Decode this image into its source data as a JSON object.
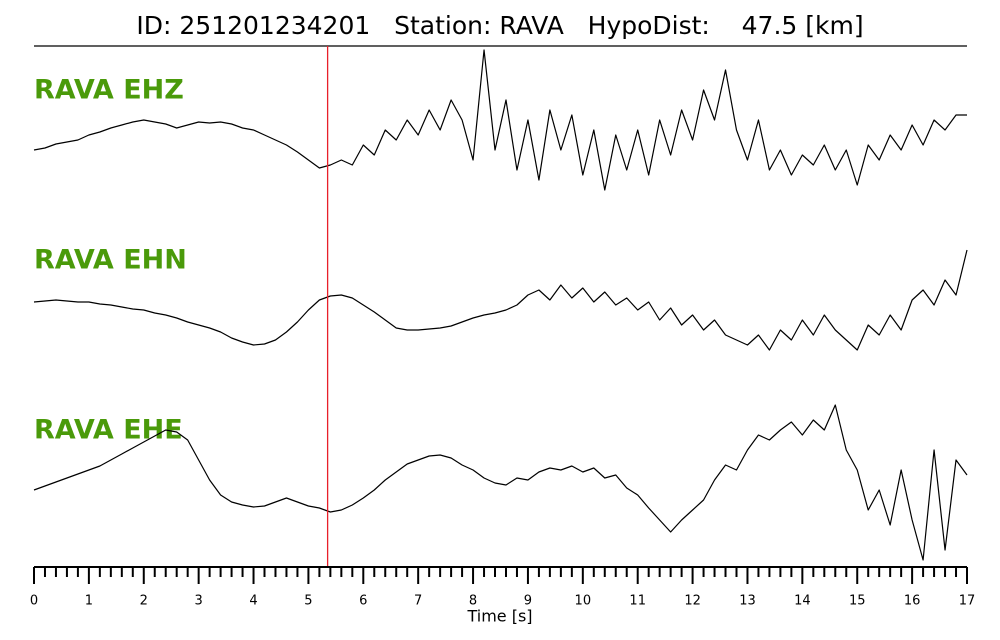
{
  "chart_data": {
    "type": "seismogram",
    "title": "ID: 251201234201   Station: RAVA   HypoDist:    47.5 [km]",
    "xlabel": "Time [s]",
    "xlim": [
      0,
      17
    ],
    "xticks": [
      0,
      1,
      2,
      3,
      4,
      5,
      6,
      7,
      8,
      9,
      10,
      11,
      12,
      13,
      14,
      15,
      16,
      17
    ],
    "xminorticks": [
      0.2,
      0.4,
      0.6,
      0.8,
      1.2,
      1.4,
      1.6,
      1.8,
      2.2,
      2.4,
      2.6,
      2.8,
      3.2,
      3.4,
      3.6,
      3.8,
      4.2,
      4.4,
      4.6,
      4.8,
      5.2,
      5.4,
      5.6,
      5.8,
      6.2,
      6.4,
      6.6,
      6.8,
      7.2,
      7.4,
      7.6,
      7.8,
      8.2,
      8.4,
      8.6,
      8.8,
      9.2,
      9.4,
      9.6,
      9.8,
      10.2,
      10.4,
      10.6,
      10.8,
      11.2,
      11.4,
      11.6,
      11.8,
      12.2,
      12.4,
      12.6,
      12.8,
      13.2,
      13.4,
      13.6,
      13.8,
      14.2,
      14.4,
      14.6,
      14.8,
      15.2,
      15.4,
      15.6,
      15.8,
      16.2,
      16.4,
      16.6,
      16.8
    ],
    "ylim": [
      -100,
      100
    ],
    "pick": {
      "x": 5.35,
      "color": "#e8202a"
    },
    "x": [
      0,
      0.2,
      0.4,
      0.6,
      0.8,
      1,
      1.2,
      1.4,
      1.6,
      1.8,
      2,
      2.2,
      2.4,
      2.6,
      2.8,
      3,
      3.2,
      3.4,
      3.6,
      3.8,
      4,
      4.2,
      4.4,
      4.6,
      4.8,
      5,
      5.2,
      5.4,
      5.6,
      5.8,
      6,
      6.2,
      6.4,
      6.6,
      6.8,
      7,
      7.2,
      7.4,
      7.6,
      7.8,
      8,
      8.2,
      8.4,
      8.6,
      8.8,
      9,
      9.2,
      9.4,
      9.6,
      9.8,
      10,
      10.2,
      10.4,
      10.6,
      10.8,
      11,
      11.2,
      11.4,
      11.6,
      11.8,
      12,
      12.2,
      12.4,
      12.6,
      12.8,
      13,
      13.2,
      13.4,
      13.6,
      13.8,
      14,
      14.2,
      14.4,
      14.6,
      14.8,
      15,
      15.2,
      15.4,
      15.6,
      15.8,
      16,
      16.2,
      16.4,
      16.6,
      16.8,
      17
    ],
    "series": [
      {
        "name": "RAVA EHZ",
        "color": "#000000",
        "values": [
          -10,
          -8,
          -4,
          -2,
          0,
          5,
          8,
          12,
          15,
          18,
          20,
          18,
          16,
          12,
          15,
          18,
          17,
          18,
          16,
          12,
          10,
          5,
          0,
          -5,
          -12,
          -20,
          -28,
          -25,
          -20,
          -25,
          -5,
          -15,
          10,
          0,
          20,
          5,
          30,
          10,
          40,
          20,
          -20,
          90,
          -10,
          40,
          -30,
          20,
          -40,
          30,
          -10,
          25,
          -35,
          10,
          -50,
          5,
          -30,
          10,
          -35,
          20,
          -15,
          30,
          0,
          50,
          20,
          70,
          10,
          -20,
          20,
          -30,
          -10,
          -35,
          -15,
          -25,
          -5,
          -30,
          -10,
          -45,
          -5,
          -20,
          5,
          -10,
          15,
          -5,
          20,
          10,
          25,
          25
        ]
      },
      {
        "name": "RAVA EHN",
        "color": "#000000",
        "values": [
          8,
          9,
          10,
          9,
          8,
          8,
          6,
          5,
          3,
          1,
          0,
          -3,
          -5,
          -8,
          -12,
          -15,
          -18,
          -22,
          -28,
          -32,
          -35,
          -34,
          -30,
          -22,
          -12,
          0,
          10,
          14,
          15,
          12,
          5,
          -2,
          -10,
          -18,
          -20,
          -20,
          -19,
          -18,
          -16,
          -12,
          -8,
          -5,
          -3,
          0,
          5,
          15,
          20,
          10,
          25,
          12,
          22,
          8,
          18,
          5,
          12,
          0,
          8,
          -10,
          2,
          -15,
          -5,
          -20,
          -10,
          -25,
          -30,
          -35,
          -25,
          -40,
          -20,
          -30,
          -10,
          -25,
          -5,
          -20,
          -30,
          -40,
          -15,
          -25,
          -5,
          -20,
          10,
          20,
          5,
          30,
          15,
          60
        ]
      },
      {
        "name": "RAVA EHE",
        "color": "#000000",
        "values": [
          -10,
          -6,
          -2,
          2,
          6,
          10,
          14,
          20,
          26,
          32,
          38,
          44,
          50,
          48,
          40,
          20,
          0,
          -15,
          -22,
          -25,
          -27,
          -26,
          -22,
          -18,
          -22,
          -26,
          -28,
          -32,
          -30,
          -25,
          -18,
          -10,
          0,
          8,
          16,
          20,
          24,
          25,
          22,
          15,
          10,
          2,
          -3,
          -5,
          2,
          0,
          8,
          12,
          10,
          14,
          8,
          12,
          2,
          5,
          -8,
          -15,
          -28,
          -40,
          -52,
          -40,
          -30,
          -20,
          0,
          15,
          10,
          30,
          45,
          40,
          50,
          58,
          45,
          60,
          50,
          75,
          30,
          10,
          -30,
          -10,
          -45,
          10,
          -40,
          -80,
          30,
          -70,
          20,
          5
        ]
      }
    ]
  }
}
